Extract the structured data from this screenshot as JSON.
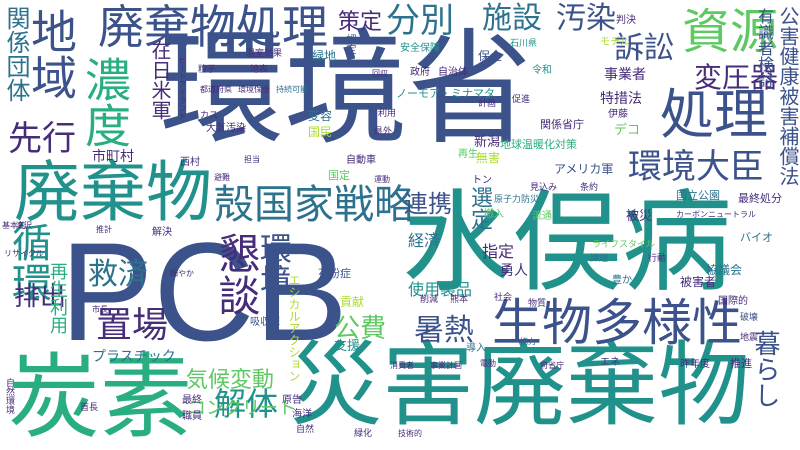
{
  "palette": {
    "deep_purple": "#440154",
    "purple": "#472c7a",
    "indigo": "#3b528b",
    "blue_teal": "#2c728e",
    "teal": "#21918c",
    "green_teal": "#28ae80",
    "green": "#5ec962",
    "yellow_green": "#addc30"
  },
  "words": {
    "w1": "環境省",
    "w2": "PCB",
    "w3": "水俣病",
    "w4": "災害廃棄物",
    "w5": "炭素",
    "w6": "廃棄物",
    "w7": "廃棄物処理",
    "w8": "地域",
    "w9": "処理",
    "w10": "生物多様性",
    "w11": "循環",
    "w12": "資源",
    "w13": "濃度",
    "w14": "殻国家戦略",
    "w15": "環境大臣",
    "w16": "分別",
    "w17": "施設",
    "w18": "汚染",
    "w19": "変圧器",
    "w20": "懇談",
    "w21": "置場",
    "w22": "暑熱",
    "w23": "解体",
    "w24": "先行",
    "w25": "気候変動",
    "w26": "救済",
    "w27": "排出",
    "w28": "連携",
    "w29": "環境",
    "w30": "関係団体",
    "w31": "在日米軍",
    "w32": "訴訟",
    "w33": "暮らし",
    "w34": "公害健康被害補償法",
    "w35": "有識者検討",
    "w36": "策定",
    "w37": "再生利用",
    "w38": "公費",
    "w39": "プラスチック",
    "w40": "コンクリート",
    "w41": "使用製品",
    "w42": "特措法",
    "w43": "事業者",
    "w44": "アメリカ軍",
    "w45": "地球温暖化対策",
    "w46": "選定",
    "w47": "市町村",
    "w48": "経済",
    "w49": "指定",
    "w50": "勇人",
    "w51": "被災",
    "w52": "協議会",
    "w53": "最終処分",
    "w54": "国立公園",
    "w55": "カーボンニュートラル",
    "w56": "ノーモア・ミナマタ",
    "w57": "関係省庁",
    "w58": "新潟",
    "w59": "貢献",
    "w60": "エシカルアクション",
    "w61": "吸収源",
    "w62": "花粉症",
    "w63": "支援",
    "w64": "緑地",
    "w65": "認定",
    "w66": "安全保障",
    "w67": "自治体",
    "w68": "保全",
    "w69": "石川県",
    "w70": "令和",
    "w71": "政府",
    "w72": "都道府県",
    "w73": "環境保全",
    "w74": "持続可能",
    "w75": "大気汚染",
    "w76": "国民",
    "w77": "変容",
    "w78": "国定",
    "w79": "自動車",
    "w80": "デコ",
    "w81": "無害",
    "w82": "再生",
    "w83": "伊藤",
    "w84": "判決",
    "w85": "モデル",
    "w86": "西村",
    "w87": "避難",
    "w88": "担当",
    "w89": "運動",
    "w90": "見込み",
    "w91": "条約",
    "w92": "トン",
    "w93": "搬入",
    "w94": "流通",
    "w95": "原子力防災",
    "w96": "バイオ",
    "w97": "ライフスタイル",
    "w98": "課題",
    "w99": "行動",
    "w100": "被害者",
    "w101": "豊か",
    "w102": "国際的",
    "w103": "破壊",
    "w104": "地震",
    "w105": "推進",
    "w106": "昨年度",
    "w107": "削減",
    "w108": "熊本",
    "w109": "社会",
    "w110": "物質",
    "w111": "導入",
    "w112": "協力",
    "w113": "消費者",
    "w114": "事業計画",
    "w115": "府省庁",
    "w116": "エネ",
    "w117": "電動",
    "w118": "原告",
    "w119": "海洋",
    "w120": "最終",
    "w121": "職員",
    "w122": "自然",
    "w123": "緑化",
    "w124": "技術的",
    "w125": "細やか",
    "w126": "市長",
    "w127": "解決",
    "w128": "推計",
    "w129": "首長",
    "w130": "滝沢",
    "w131": "基本的",
    "w132": "リサイクル",
    "w133": "自然環境",
    "w134": "温室効果",
    "w135": "地表",
    "w136": "粒子",
    "w137": "カス",
    "w138": "ヒートアイランド",
    "w139": "県外",
    "w140": "利用",
    "w141": "計画",
    "w142": "促進",
    "w143": "回収",
    "w144": "廃止",
    "w145": "地方",
    "w146": "企業",
    "w147": "排出量",
    "w148": "国会",
    "w149": "社会的",
    "w150": "適正",
    "w151": "市町",
    "w152": "普及",
    "w153": "適応",
    "w154": "参画",
    "w155": "団体",
    "w156": "情報",
    "w157": "中間",
    "w158": "大臣",
    "w159": "処分",
    "w160": "地方公共団体",
    "w161": "撤去",
    "w162": "取組",
    "w163": "目標",
    "w164": "国際",
    "w165": "専門家",
    "w166": "制度",
    "w167": "健康",
    "w168": "電力",
    "w169": "森林"
  }
}
